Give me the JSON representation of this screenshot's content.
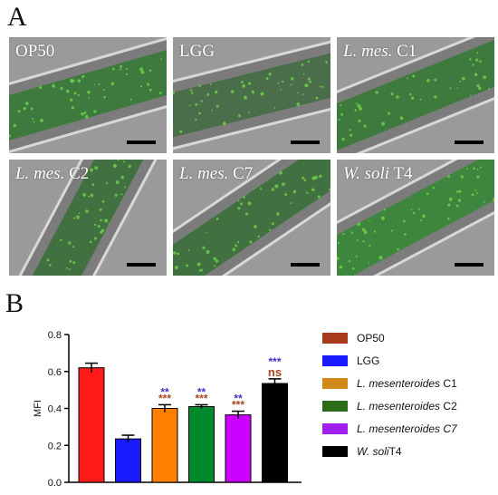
{
  "panel_a": {
    "letter": "A",
    "images": [
      {
        "italic": "",
        "rest": "OP50",
        "color": "#2a7a2a"
      },
      {
        "italic": "",
        "rest": "LGG",
        "color": "#3a6a3a"
      },
      {
        "italic": "L. mes.",
        "rest": " C1",
        "color": "#2a7a2a"
      },
      {
        "italic": "L. mes.",
        "rest": " C2",
        "color": "#2e6e2e"
      },
      {
        "italic": "L. mes.",
        "rest": " C7",
        "color": "#2e6e2e"
      },
      {
        "italic": "W. soli",
        "rest": " T4",
        "color": "#2a8a2a"
      }
    ]
  },
  "panel_b": {
    "letter": "B"
  },
  "chart_data": {
    "type": "bar",
    "title": "",
    "xlabel": "",
    "ylabel": "MFI",
    "ylim": [
      0.0,
      0.8
    ],
    "yticks": [
      "0.0",
      "0.2",
      "0.4",
      "0.6",
      "0.8"
    ],
    "grid": false,
    "legend_position": "right",
    "series": [
      {
        "name": "OP50",
        "legend_italic": "",
        "legend_rest": "OP50",
        "value": 0.62,
        "error": 0.025,
        "color": "#ff1a1a",
        "legend_color": "#a63a1a",
        "sig_top": "",
        "sig_bottom": "",
        "sig_top_color": "",
        "sig_bottom_color": ""
      },
      {
        "name": "LGG",
        "legend_italic": "",
        "legend_rest": "LGG",
        "value": 0.235,
        "error": 0.02,
        "color": "#1a1aff",
        "legend_color": "#1a1aff",
        "sig_top": "",
        "sig_bottom": "",
        "sig_top_color": "",
        "sig_bottom_color": ""
      },
      {
        "name": "L. mesenteroides C1",
        "legend_italic": "L. mesenteroides",
        "legend_rest": " C1",
        "value": 0.4,
        "error": 0.02,
        "color": "#ff8000",
        "legend_color": "#d18a1a",
        "sig_top": "**",
        "sig_bottom": "***",
        "sig_top_color": "#4a2fbf",
        "sig_bottom_color": "#a6451a"
      },
      {
        "name": "L. mesenteroides C2",
        "legend_italic": "L. mesenteroides",
        "legend_rest": " C2",
        "value": 0.41,
        "error": 0.01,
        "color": "#008a2e",
        "legend_color": "#2a6a1a",
        "sig_top": "**",
        "sig_bottom": "***",
        "sig_top_color": "#4a2fbf",
        "sig_bottom_color": "#a6451a"
      },
      {
        "name": "L. mesenteroides C7",
        "legend_italic": "L. mesenteroides C7",
        "legend_rest": "",
        "value": 0.365,
        "error": 0.02,
        "color": "#cc00ff",
        "legend_color": "#a020f0",
        "sig_top": "**",
        "sig_bottom": "***",
        "sig_top_color": "#4a2fbf",
        "sig_bottom_color": "#a6451a"
      },
      {
        "name": "W. soliT4",
        "legend_italic": "W. soli",
        "legend_rest": "T4",
        "value": 0.535,
        "error": 0.025,
        "color": "#000000",
        "legend_color": "#000000",
        "sig_top": "***",
        "sig_bottom": "ns",
        "sig_top_color": "#3a2fcf",
        "sig_bottom_color": "#a6451a"
      }
    ]
  }
}
